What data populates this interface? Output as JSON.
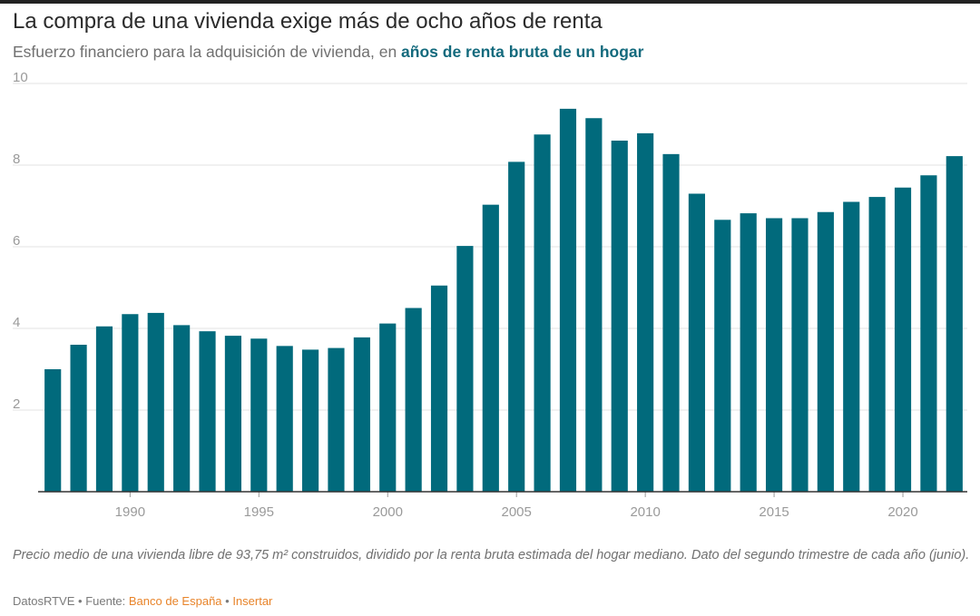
{
  "header": {
    "title": "La compra de una vivienda exige más de ocho años de renta",
    "subtitle_prefix": "Esfuerzo financiero para la adquisición de vivienda, en ",
    "subtitle_highlight": "años de renta bruta de un hogar"
  },
  "chart_data": {
    "type": "bar",
    "title": "La compra de una vivienda exige más de ocho años de renta",
    "subtitle": "Esfuerzo financiero para la adquisición de vivienda, en años de renta bruta de un hogar",
    "xlabel": "",
    "ylabel": "",
    "categories": [
      1987,
      1988,
      1989,
      1990,
      1991,
      1992,
      1993,
      1994,
      1995,
      1996,
      1997,
      1998,
      1999,
      2000,
      2001,
      2002,
      2003,
      2004,
      2005,
      2006,
      2007,
      2008,
      2009,
      2010,
      2011,
      2012,
      2013,
      2014,
      2015,
      2016,
      2017,
      2018,
      2019,
      2020,
      2021,
      2022
    ],
    "values": [
      3.0,
      3.6,
      4.05,
      4.35,
      4.38,
      4.08,
      3.93,
      3.82,
      3.75,
      3.57,
      3.48,
      3.52,
      3.78,
      4.12,
      4.5,
      5.05,
      6.02,
      7.03,
      8.08,
      8.75,
      9.38,
      9.15,
      8.6,
      8.78,
      8.27,
      7.3,
      6.66,
      6.82,
      6.7,
      6.7,
      6.85,
      7.1,
      7.22,
      7.45,
      7.75,
      8.22
    ],
    "x_ticks": [
      "1990",
      "1995",
      "2000",
      "2005",
      "2010",
      "2015",
      "2020"
    ],
    "y_ticks": [
      "2",
      "4",
      "6",
      "8",
      "10"
    ],
    "ylim": [
      0,
      10
    ],
    "grid": true,
    "bar_color": "#016a7c",
    "legend": "none"
  },
  "footnote": "Precio medio de una vivienda libre de 93,75 m² construidos, dividido por la renta bruta estimada del hogar mediano. Dato del segundo trimestre de cada año (junio).",
  "footer": {
    "brand": "DatosRTVE",
    "separator": " • ",
    "source_prefix": "Fuente: ",
    "source_link": "Banco de España",
    "embed_link": "Insertar"
  },
  "colors": {
    "bar": "#016a7c",
    "highlight": "#136a7d",
    "link": "#e8842a"
  }
}
